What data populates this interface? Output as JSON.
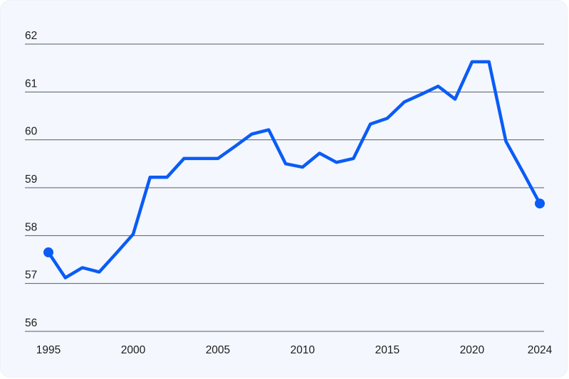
{
  "chart_data": {
    "type": "line",
    "title": "",
    "xlabel": "",
    "ylabel": "",
    "ylim": [
      56,
      62
    ],
    "yticks": [
      56,
      57,
      58,
      59,
      60,
      61,
      62
    ],
    "yticks_text": [
      "56",
      "57",
      "58",
      "59",
      "60",
      "61",
      "62"
    ],
    "xlim": [
      1995,
      2024
    ],
    "xticks": [
      1995,
      2000,
      2005,
      2010,
      2015,
      2020,
      2024
    ],
    "xticks_text": [
      "1995",
      "2000",
      "2005",
      "2010",
      "2015",
      "2020",
      "2024"
    ],
    "grid": "horizontal",
    "legend": "none",
    "line_color": "#0a5cf5",
    "grid_color": "#555c66",
    "series": [
      {
        "x": [
          1995,
          1996,
          1997,
          1998,
          1999,
          2000,
          2001,
          2002,
          2003,
          2004,
          2005,
          2006,
          2007,
          2008,
          2009,
          2010,
          2011,
          2012,
          2013,
          2014,
          2015,
          2016,
          2017,
          2018,
          2019,
          2020,
          2021,
          2022,
          2023,
          2024
        ],
        "values": [
          57.65,
          57.12,
          57.33,
          57.24,
          57.63,
          58.03,
          59.22,
          59.22,
          59.61,
          59.61,
          59.61,
          59.86,
          60.12,
          60.21,
          59.5,
          59.43,
          59.72,
          59.53,
          59.61,
          60.33,
          60.45,
          60.79,
          60.95,
          61.12,
          60.85,
          61.63,
          61.63,
          59.97,
          59.33,
          58.67
        ],
        "markers": "endpoints"
      }
    ]
  }
}
